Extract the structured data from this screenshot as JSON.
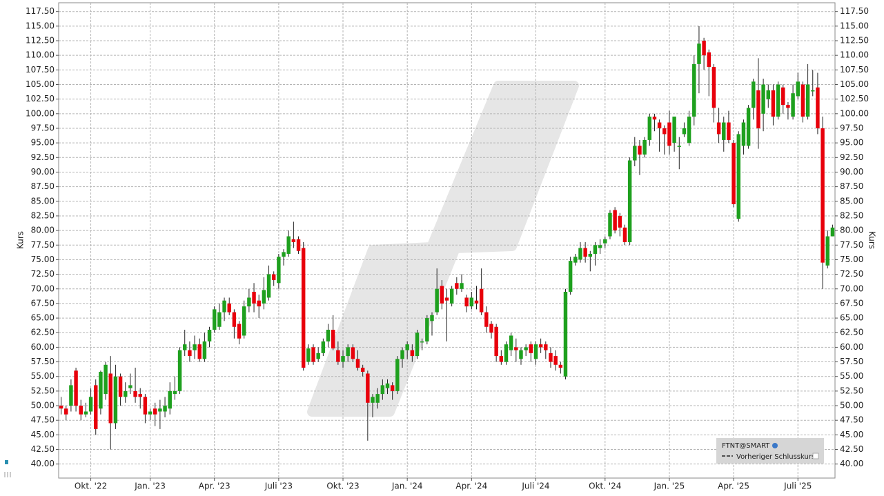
{
  "chart_data": {
    "type": "candlestick",
    "y_label": "Kurs",
    "legend": {
      "title": "FTNT@SMART",
      "items": [
        "Vorheriger Schlusskurs"
      ]
    },
    "up_color": "#1ea01e",
    "down_color": "#e8000b",
    "wick_color": "#222222",
    "grid": true,
    "categories": [
      null,
      null,
      null,
      null,
      null,
      null,
      "Okt. '22",
      null,
      null,
      null,
      null,
      null,
      null,
      null,
      null,
      null,
      null,
      null,
      "Jan. '23",
      null,
      null,
      null,
      null,
      null,
      null,
      null,
      null,
      null,
      null,
      null,
      null,
      "Apr. '23",
      null,
      null,
      null,
      null,
      null,
      null,
      null,
      null,
      null,
      null,
      null,
      null,
      "Juli '23",
      null,
      null,
      null,
      null,
      null,
      null,
      null,
      null,
      null,
      null,
      null,
      null,
      "Okt. '23",
      null,
      null,
      null,
      null,
      null,
      null,
      null,
      null,
      null,
      null,
      null,
      null,
      "Jan. '24",
      null,
      null,
      null,
      null,
      null,
      null,
      null,
      null,
      null,
      null,
      null,
      null,
      "Apr. '24",
      null,
      null,
      null,
      null,
      null,
      null,
      null,
      null,
      null,
      null,
      null,
      null,
      "Juli '24",
      null,
      null,
      null,
      null,
      null,
      null,
      null,
      null,
      null,
      null,
      null,
      null,
      null,
      "Okt. '24",
      null,
      null,
      null,
      null,
      null,
      null,
      null,
      null,
      null,
      null,
      null,
      null,
      "Jan. '25",
      null,
      null,
      null,
      null,
      null,
      null,
      null,
      null,
      null,
      null,
      null,
      null,
      "Apr. '25",
      null,
      null,
      null,
      null,
      null,
      null,
      null,
      null,
      null,
      null,
      null,
      null,
      "Juli '25",
      null,
      null,
      null,
      null,
      null,
      null,
      null
    ],
    "open": [
      50,
      49.5,
      50,
      56,
      50,
      48.5,
      49,
      53.5,
      49.5,
      52,
      55.5,
      47,
      55,
      51.5,
      53,
      52.5,
      52,
      51.5,
      48.5,
      49.5,
      49,
      49,
      49.5,
      52,
      52.5,
      59.5,
      59.5,
      59.5,
      60.5,
      58,
      61,
      63,
      63.5,
      66,
      67.5,
      66,
      64,
      62,
      67,
      69.5,
      68,
      67.5,
      68.5,
      72.5,
      71,
      75.5,
      76,
      78.5,
      78.5,
      77,
      57.5,
      60,
      58,
      59,
      61,
      63,
      59.5,
      57.5,
      58.5,
      60,
      58,
      56.5,
      55.5,
      50.5,
      50.5,
      52,
      53,
      53.5,
      52.5,
      58,
      59.5,
      59.5,
      58.5,
      61,
      61,
      64.5,
      66,
      70.5,
      68.5,
      67.5,
      71,
      70,
      68.5,
      67,
      68,
      70,
      66,
      64,
      63.5,
      58.5,
      57.5,
      59.5,
      60,
      58,
      59.5,
      60.5,
      58,
      60.5,
      60.5,
      59,
      58.5,
      57,
      55,
      69.5,
      74.5,
      75,
      77,
      75.5,
      76,
      77,
      77.8,
      79,
      83.5,
      82.5,
      80.5,
      78,
      92,
      94.5,
      93,
      95.5,
      99.5,
      98.5,
      97.5,
      98.5,
      95,
      94.5,
      96.5,
      95,
      99.5,
      108.5,
      112.5,
      110.5,
      108,
      98.5,
      95.5,
      98.5,
      95,
      82,
      94.5,
      94.5,
      101,
      104,
      100,
      102.5,
      104,
      99.5,
      104.5,
      101.5,
      99.5,
      103,
      105,
      99.5,
      104,
      104.5,
      97.5,
      74,
      79
    ],
    "high": [
      51.5,
      50,
      54.5,
      56.5,
      51,
      50.5,
      53,
      54.5,
      56,
      57.5,
      58.5,
      57,
      55.5,
      54,
      55.5,
      56.5,
      53,
      52,
      49.5,
      50.5,
      51,
      51.5,
      54,
      55,
      60,
      63,
      61,
      62,
      61.5,
      62.5,
      63.5,
      67,
      67.5,
      68.5,
      68.5,
      66.5,
      64.5,
      68,
      70,
      71,
      69,
      72,
      74,
      73,
      76,
      76.8,
      80,
      81.5,
      79,
      78,
      60.5,
      60.5,
      60,
      61.5,
      64,
      65.5,
      61,
      59.5,
      60.5,
      60.5,
      59.5,
      57,
      56,
      52,
      53,
      54.5,
      54.5,
      54,
      58.5,
      60,
      61,
      60.5,
      63,
      61.5,
      65.5,
      66,
      73.5,
      71.5,
      70,
      70.5,
      72,
      72.5,
      69,
      69.5,
      70.5,
      73.5,
      67,
      64.5,
      64,
      59.5,
      61,
      62.5,
      61.5,
      60,
      60.5,
      61,
      61,
      61.5,
      61,
      60,
      59.5,
      57.5,
      70,
      75.5,
      76,
      78,
      78,
      76.5,
      78,
      78.5,
      79,
      83.5,
      84,
      83,
      81,
      92.5,
      96,
      95.5,
      96,
      100,
      100,
      99,
      98,
      100.5,
      99.5,
      96,
      98.5,
      100.5,
      110,
      115,
      113,
      111,
      108.5,
      101,
      99.5,
      100.5,
      95.5,
      97,
      99,
      101.5,
      106,
      109.5,
      106,
      105,
      105,
      105.5,
      105,
      102,
      105,
      107,
      105.5,
      108.5,
      107.5,
      107,
      99.5,
      80,
      81
    ],
    "low": [
      48.5,
      47.5,
      49,
      49,
      47.5,
      48,
      48.5,
      45,
      48.5,
      51,
      42.5,
      46,
      50,
      50.5,
      52,
      50.5,
      49.5,
      47,
      47.5,
      46.5,
      46,
      48,
      48.5,
      51,
      52,
      58.5,
      57.5,
      58,
      57.5,
      57.5,
      60,
      62.5,
      63,
      64.5,
      65.5,
      61.5,
      60.5,
      61.5,
      66,
      66,
      65,
      66.5,
      68,
      70.5,
      70,
      74,
      75.5,
      77,
      76,
      56,
      57,
      57,
      57.5,
      58.5,
      60,
      59.5,
      57,
      56.5,
      57.5,
      57.5,
      56,
      55,
      44,
      48,
      49.5,
      51,
      52,
      51,
      52,
      56.5,
      58,
      57.5,
      58,
      59.5,
      60.5,
      62,
      65.5,
      66.5,
      61,
      67,
      69,
      69.5,
      66,
      66.5,
      66.5,
      65.5,
      62.5,
      61.5,
      57.5,
      57,
      57,
      58.5,
      57.5,
      57,
      58.5,
      57.5,
      57,
      59,
      58,
      56.5,
      56,
      55.5,
      54.5,
      69,
      74,
      74.5,
      74.5,
      73,
      74,
      76,
      77,
      78.5,
      79.5,
      79,
      77.5,
      77.5,
      91,
      89.5,
      92.5,
      94.5,
      97,
      93.5,
      93,
      93,
      93.5,
      90.5,
      96,
      94.5,
      98,
      103.5,
      107.5,
      103,
      98.5,
      95,
      93.5,
      95,
      84,
      81.5,
      93,
      94,
      99,
      94,
      97,
      101,
      98,
      99,
      100,
      99,
      99,
      102.5,
      98.5,
      99,
      103,
      96.5,
      70,
      73.5,
      79
    ],
    "close": [
      49.5,
      48.5,
      53.5,
      50,
      48.5,
      49,
      51.5,
      46,
      55.8,
      57,
      47,
      55,
      51.5,
      52.5,
      53.5,
      51.5,
      51.5,
      48.5,
      49,
      48.5,
      49.5,
      50,
      52.5,
      52.5,
      59.5,
      60.5,
      58.5,
      60.5,
      58,
      61,
      63,
      66.5,
      66,
      68,
      66,
      63.5,
      61.5,
      67,
      68.5,
      67.5,
      67,
      69.8,
      72.5,
      71.5,
      75.5,
      76.3,
      79,
      78,
      76.5,
      56.5,
      59.8,
      57.5,
      59,
      61,
      63,
      59.8,
      57.5,
      58.5,
      60,
      58,
      56.5,
      55.8,
      50.5,
      51.5,
      52,
      53.5,
      53.8,
      52.5,
      58,
      59.5,
      60.5,
      58.5,
      62.5,
      61,
      65,
      65.5,
      70,
      67.5,
      68,
      70,
      70,
      71,
      67,
      68.5,
      67.5,
      66,
      63.5,
      62.5,
      58.5,
      57.5,
      60.5,
      62,
      59.5,
      59.5,
      60,
      59,
      60.5,
      60,
      59.5,
      57.5,
      57,
      56.5,
      69.5,
      74.8,
      75.5,
      77,
      75.5,
      76,
      77.5,
      77.5,
      78.5,
      83,
      80,
      80.5,
      78,
      92,
      94.5,
      93,
      95.5,
      99.5,
      99,
      97.5,
      96.5,
      94.5,
      99.5,
      94.5,
      97.5,
      99.5,
      108.5,
      112,
      110,
      108,
      101,
      96.5,
      98.5,
      95.5,
      84.5,
      96.5,
      98.5,
      101,
      105.5,
      97.5,
      105,
      104,
      99.5,
      105,
      101.5,
      101,
      103.5,
      105.5,
      99.5,
      105,
      104,
      97.5,
      74.5,
      79,
      80.5
    ],
    "ylim": [
      37.6,
      119
    ],
    "yticks": [
      {
        "value": 40,
        "label": "40.00"
      },
      {
        "value": 42.5,
        "label": "42.50"
      },
      {
        "value": 45,
        "label": "45.00"
      },
      {
        "value": 47.5,
        "label": "47.50"
      },
      {
        "value": 50,
        "label": "50.00"
      },
      {
        "value": 52.5,
        "label": "52.50"
      },
      {
        "value": 55,
        "label": "55.00"
      },
      {
        "value": 57.5,
        "label": "57.50"
      },
      {
        "value": 60,
        "label": "60.00"
      },
      {
        "value": 62.5,
        "label": "62.50"
      },
      {
        "value": 65,
        "label": "65.00"
      },
      {
        "value": 67.5,
        "label": "67.50"
      },
      {
        "value": 70,
        "label": "70.00"
      },
      {
        "value": 72.5,
        "label": "72.50"
      },
      {
        "value": 75,
        "label": "75.00"
      },
      {
        "value": 77.5,
        "label": "77.50"
      },
      {
        "value": 80,
        "label": "80.00"
      },
      {
        "value": 82.5,
        "label": "82.50"
      },
      {
        "value": 85,
        "label": "85.00"
      },
      {
        "value": 87.5,
        "label": "87.50"
      },
      {
        "value": 90,
        "label": "90.00"
      },
      {
        "value": 92.5,
        "label": "92.50"
      },
      {
        "value": 95,
        "label": "95.00"
      },
      {
        "value": 97.5,
        "label": "97.50"
      },
      {
        "value": 100,
        "label": "100.00"
      },
      {
        "value": 102.5,
        "label": "102.50"
      },
      {
        "value": 105,
        "label": "105.00"
      },
      {
        "value": 107.5,
        "label": "107.50"
      },
      {
        "value": 110,
        "label": "110.00"
      },
      {
        "value": 112.5,
        "label": "112.50"
      },
      {
        "value": 115,
        "label": "115.00"
      },
      {
        "value": 117.5,
        "label": "117.50"
      }
    ]
  }
}
